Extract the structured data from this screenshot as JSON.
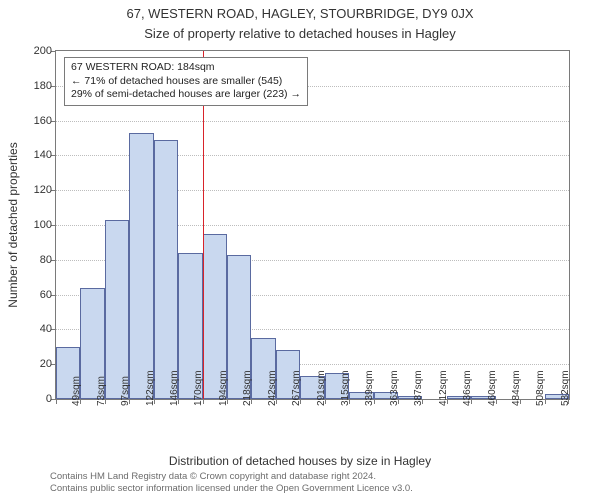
{
  "title": "67, WESTERN ROAD, HAGLEY, STOURBRIDGE, DY9 0JX",
  "subtitle": "Size of property relative to detached houses in Hagley",
  "yaxis_label": "Number of detached properties",
  "xaxis_label": "Distribution of detached houses by size in Hagley",
  "footer_line1": "Contains HM Land Registry data © Crown copyright and database right 2024.",
  "footer_line2": "Contains public sector information licensed under the Open Government Licence v3.0.",
  "chart": {
    "type": "histogram",
    "ylim": [
      0,
      200
    ],
    "ytick_step": 20,
    "background_color": "#ffffff",
    "grid_color": "#bdbdbd",
    "axis_color": "#7a7a7a",
    "bar_fill": "#c9d8ef",
    "bar_border": "#5a6aa0",
    "marker_color": "#d8232a",
    "marker_at_category_index": 6,
    "categories": [
      "49sqm",
      "73sqm",
      "97sqm",
      "122sqm",
      "146sqm",
      "170sqm",
      "194sqm",
      "218sqm",
      "242sqm",
      "267sqm",
      "291sqm",
      "315sqm",
      "339sqm",
      "363sqm",
      "387sqm",
      "412sqm",
      "436sqm",
      "460sqm",
      "484sqm",
      "508sqm",
      "532sqm"
    ],
    "values": [
      30,
      64,
      103,
      153,
      149,
      84,
      95,
      83,
      35,
      28,
      13,
      15,
      4,
      4,
      2,
      0,
      2,
      2,
      0,
      0,
      3
    ],
    "annotation": {
      "line1": "67 WESTERN ROAD: 184sqm",
      "line2": "← 71% of detached houses are smaller (545)",
      "line3": "29% of semi-detached houses are larger (223) →"
    }
  }
}
